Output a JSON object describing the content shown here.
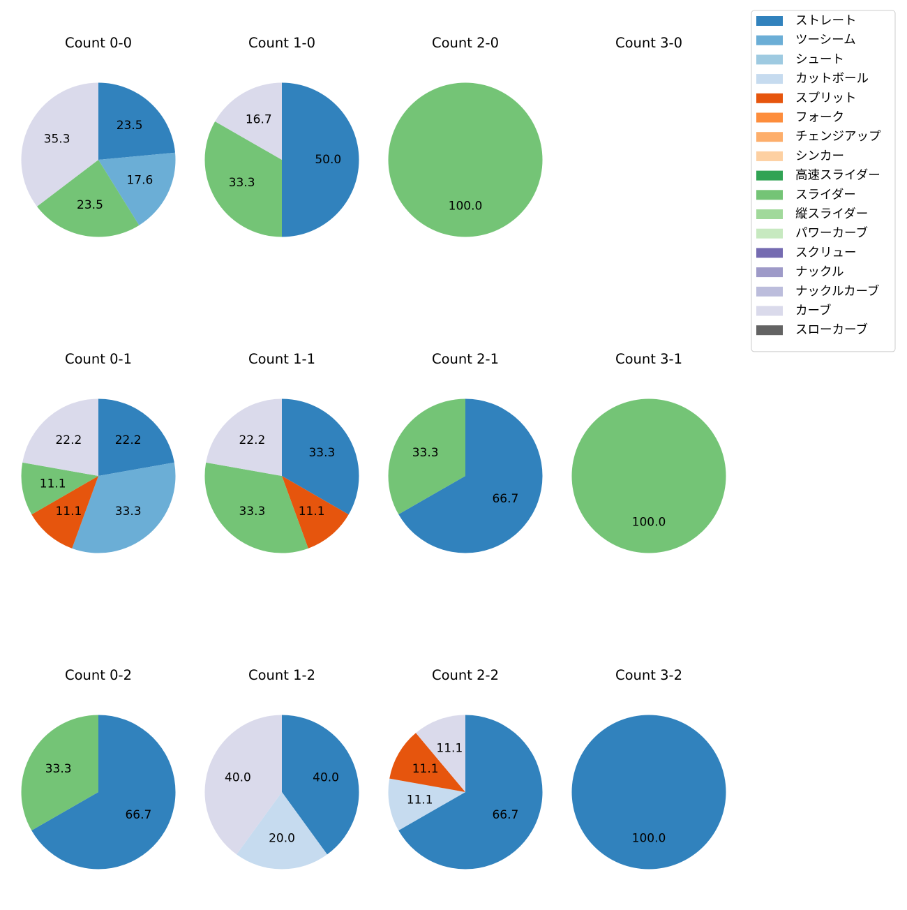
{
  "chart_data": {
    "type": "pie",
    "legend_position": "top-right",
    "legend": [
      {
        "name": "ストレート",
        "color": "#3182bd"
      },
      {
        "name": "ツーシーム",
        "color": "#6baed6"
      },
      {
        "name": "シュート",
        "color": "#9ecae1"
      },
      {
        "name": "カットボール",
        "color": "#c6dbef"
      },
      {
        "name": "スプリット",
        "color": "#e6550d"
      },
      {
        "name": "フォーク",
        "color": "#fd8d3c"
      },
      {
        "name": "チェンジアップ",
        "color": "#fdae6b"
      },
      {
        "name": "シンカー",
        "color": "#fdd0a2"
      },
      {
        "name": "高速スライダー",
        "color": "#31a354"
      },
      {
        "name": "スライダー",
        "color": "#74c476"
      },
      {
        "name": "縦スライダー",
        "color": "#a1d99b"
      },
      {
        "name": "パワーカーブ",
        "color": "#c7e9c0"
      },
      {
        "name": "スクリュー",
        "color": "#756bb1"
      },
      {
        "name": "ナックル",
        "color": "#9e9ac8"
      },
      {
        "name": "ナックルカーブ",
        "color": "#bcbddc"
      },
      {
        "name": "カーブ",
        "color": "#dadaeb"
      },
      {
        "name": "スローカーブ",
        "color": "#636363"
      }
    ],
    "charts": [
      {
        "title": "Count 0-0",
        "slices": [
          {
            "pitch": "ストレート",
            "value": 23.5,
            "label": "23.5"
          },
          {
            "pitch": "ツーシーム",
            "value": 17.6,
            "label": "17.6"
          },
          {
            "pitch": "スライダー",
            "value": 23.5,
            "label": "23.5"
          },
          {
            "pitch": "カーブ",
            "value": 35.3,
            "label": "35.3"
          }
        ]
      },
      {
        "title": "Count 1-0",
        "slices": [
          {
            "pitch": "ストレート",
            "value": 50.0,
            "label": "50.0"
          },
          {
            "pitch": "スライダー",
            "value": 33.3,
            "label": "33.3"
          },
          {
            "pitch": "カーブ",
            "value": 16.7,
            "label": "16.7"
          }
        ]
      },
      {
        "title": "Count 2-0",
        "slices": [
          {
            "pitch": "スライダー",
            "value": 100.0,
            "label": "100.0"
          }
        ]
      },
      {
        "title": "Count 3-0",
        "slices": []
      },
      {
        "title": "Count 0-1",
        "slices": [
          {
            "pitch": "ストレート",
            "value": 22.2,
            "label": "22.2"
          },
          {
            "pitch": "ツーシーム",
            "value": 33.3,
            "label": "33.3"
          },
          {
            "pitch": "スプリット",
            "value": 11.1,
            "label": "11.1"
          },
          {
            "pitch": "スライダー",
            "value": 11.1,
            "label": "11.1"
          },
          {
            "pitch": "カーブ",
            "value": 22.2,
            "label": "22.2"
          }
        ]
      },
      {
        "title": "Count 1-1",
        "slices": [
          {
            "pitch": "ストレート",
            "value": 33.3,
            "label": "33.3"
          },
          {
            "pitch": "スプリット",
            "value": 11.1,
            "label": "11.1"
          },
          {
            "pitch": "スライダー",
            "value": 33.3,
            "label": "33.3"
          },
          {
            "pitch": "カーブ",
            "value": 22.2,
            "label": "22.2"
          }
        ]
      },
      {
        "title": "Count 2-1",
        "slices": [
          {
            "pitch": "ストレート",
            "value": 66.7,
            "label": "66.7"
          },
          {
            "pitch": "スライダー",
            "value": 33.3,
            "label": "33.3"
          }
        ]
      },
      {
        "title": "Count 3-1",
        "slices": [
          {
            "pitch": "スライダー",
            "value": 100.0,
            "label": "100.0"
          }
        ]
      },
      {
        "title": "Count 0-2",
        "slices": [
          {
            "pitch": "ストレート",
            "value": 66.7,
            "label": "66.7"
          },
          {
            "pitch": "スライダー",
            "value": 33.3,
            "label": "33.3"
          }
        ]
      },
      {
        "title": "Count 1-2",
        "slices": [
          {
            "pitch": "ストレート",
            "value": 40.0,
            "label": "40.0"
          },
          {
            "pitch": "カットボール",
            "value": 20.0,
            "label": "20.0"
          },
          {
            "pitch": "カーブ",
            "value": 40.0,
            "label": "40.0"
          }
        ]
      },
      {
        "title": "Count 2-2",
        "slices": [
          {
            "pitch": "ストレート",
            "value": 66.7,
            "label": "66.7"
          },
          {
            "pitch": "カットボール",
            "value": 11.1,
            "label": "11.1"
          },
          {
            "pitch": "スプリット",
            "value": 11.1,
            "label": "11.1"
          },
          {
            "pitch": "カーブ",
            "value": 11.1,
            "label": "11.1"
          }
        ]
      },
      {
        "title": "Count 3-2",
        "slices": [
          {
            "pitch": "ストレート",
            "value": 100.0,
            "label": "100.0"
          }
        ]
      }
    ]
  }
}
